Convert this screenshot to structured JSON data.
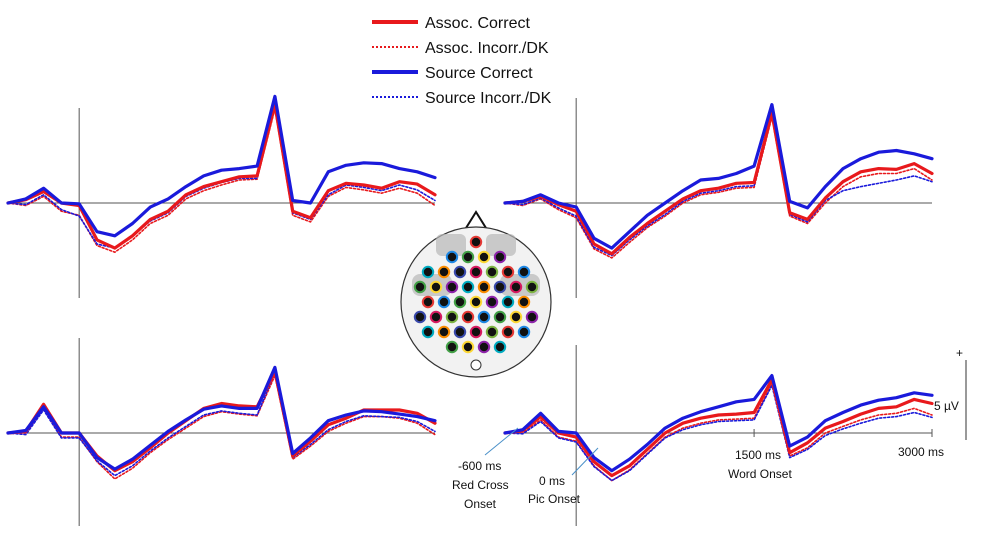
{
  "legend": [
    {
      "label": "Assoc. Correct",
      "color": "#e8191c",
      "dash": "solid"
    },
    {
      "label": "Assoc. Incorr./DK",
      "color": "#e8191c",
      "dash": "dotted"
    },
    {
      "label": "Source Correct",
      "color": "#1a1adb",
      "dash": "solid"
    },
    {
      "label": "Source Incorr./DK",
      "color": "#1a1adb",
      "dash": "dotted"
    }
  ],
  "annotations": {
    "t_neg600_value": "-600 ms",
    "t_neg600_line2": "Red Cross",
    "t_neg600_line3": "Onset",
    "t0_value": "0 ms",
    "t0_line2": "Pic Onset",
    "t1500_value": "1500 ms",
    "t1500_line2": "Word Onset",
    "t3000_value": "3000 ms",
    "scale_plus": "+",
    "scale_label": "5 µV"
  },
  "colors": {
    "red": "#e8191c",
    "blue": "#1a1adb",
    "axis": "#555555"
  },
  "chart_data": [
    {
      "type": "line",
      "panel": "top-left",
      "x_unit": "ms",
      "x": [
        -600,
        -450,
        -300,
        -150,
        0,
        150,
        300,
        450,
        600,
        750,
        900,
        1050,
        1200,
        1350,
        1500,
        1650,
        1800,
        1950,
        2100,
        2250,
        2400,
        2550,
        2700,
        2850,
        3000
      ],
      "series": [
        {
          "name": "Assoc. Correct",
          "values": [
            0,
            0.4,
            1.4,
            0,
            -0.3,
            -4.5,
            -5.5,
            -4,
            -2,
            -1,
            1,
            2,
            2.6,
            3.2,
            3.3,
            12,
            -1,
            -1.8,
            1.5,
            2.4,
            2.2,
            1.8,
            2.6,
            2.3,
            1.0
          ]
        },
        {
          "name": "Assoc. Incorr./DK",
          "values": [
            0,
            -0.3,
            0.8,
            -1.0,
            -1.5,
            -5.2,
            -6.0,
            -4.5,
            -2.5,
            -1.5,
            0.5,
            1.5,
            2.2,
            2.8,
            2.9,
            11.5,
            -1.5,
            -2.3,
            0.8,
            1.9,
            1.6,
            1.2,
            1.8,
            1.2,
            -0.3
          ]
        },
        {
          "name": "Source Correct",
          "values": [
            0,
            0.5,
            1.8,
            0,
            -0.1,
            -3.5,
            -4.0,
            -2.5,
            -0.5,
            0.5,
            2.0,
            3.3,
            4.0,
            4.2,
            4.5,
            13,
            0.3,
            0,
            3.8,
            4.6,
            4.9,
            4.8,
            4.2,
            3.8,
            3.1
          ]
        },
        {
          "name": "Source Incorr./DK",
          "values": [
            0,
            -0.2,
            1.0,
            -0.8,
            -1.6,
            -5.0,
            -5.5,
            -4.0,
            -2.2,
            -1.2,
            0.8,
            1.8,
            2.5,
            3.0,
            3.0,
            11.8,
            -1.2,
            -2.0,
            1.0,
            2.2,
            1.9,
            1.5,
            2.2,
            1.6,
            0.3
          ]
        }
      ]
    },
    {
      "type": "line",
      "panel": "top-right",
      "x_unit": "ms",
      "x": [
        -600,
        -450,
        -300,
        -150,
        0,
        150,
        300,
        450,
        600,
        750,
        900,
        1050,
        1200,
        1350,
        1500,
        1650,
        1800,
        1950,
        2100,
        2250,
        2400,
        2550,
        2700,
        2850,
        3000
      ],
      "series": [
        {
          "name": "Assoc. Correct",
          "values": [
            0,
            0.2,
            0.8,
            -0.2,
            -1.0,
            -5.0,
            -6.2,
            -4.2,
            -2.5,
            -1.0,
            0.5,
            1.5,
            1.8,
            2.4,
            2.5,
            11,
            -1.2,
            -2,
            0.6,
            2.6,
            3.8,
            4.2,
            4.1,
            4.8,
            3.6
          ]
        },
        {
          "name": "Assoc. Incorr./DK",
          "values": [
            0,
            -0.3,
            0.5,
            -0.8,
            -1.8,
            -5.6,
            -6.7,
            -4.8,
            -3.0,
            -1.6,
            0,
            1.0,
            1.3,
            1.8,
            1.9,
            10.5,
            -1.6,
            -2.5,
            0,
            2.0,
            3.2,
            3.6,
            3.6,
            4.2,
            2.8
          ]
        },
        {
          "name": "Source Correct",
          "values": [
            0,
            0.2,
            1.0,
            0,
            -0.5,
            -4.3,
            -5.5,
            -3.5,
            -1.5,
            0,
            1.5,
            2.8,
            3.0,
            3.6,
            4.5,
            12,
            0.2,
            -0.6,
            2.0,
            4.2,
            5.4,
            6.2,
            6.4,
            6.0,
            5.4
          ]
        },
        {
          "name": "Source Incorr./DK",
          "values": [
            0,
            -0.2,
            0.6,
            -0.6,
            -1.6,
            -5.4,
            -6.4,
            -4.5,
            -2.8,
            -1.4,
            0.2,
            1.2,
            1.5,
            2.0,
            2.1,
            10.8,
            -1.4,
            -2.3,
            0.3,
            1.5,
            2.0,
            2.4,
            2.8,
            3.3,
            2.6
          ]
        }
      ]
    },
    {
      "type": "line",
      "panel": "bottom-left",
      "x_unit": "ms",
      "x": [
        -600,
        -450,
        -300,
        -150,
        0,
        150,
        300,
        450,
        600,
        750,
        900,
        1050,
        1200,
        1350,
        1500,
        1650,
        1800,
        1950,
        2100,
        2250,
        2400,
        2550,
        2700,
        2850,
        3000
      ],
      "series": [
        {
          "name": "Assoc. Correct",
          "values": [
            0,
            0.2,
            3.5,
            0,
            0,
            -2.8,
            -4.6,
            -3.5,
            -1.8,
            0,
            1.5,
            3.0,
            3.6,
            3.3,
            3.2,
            7.5,
            -2.8,
            -1.0,
            1.0,
            1.8,
            2.8,
            2.8,
            2.8,
            2.4,
            1.2
          ]
        },
        {
          "name": "Assoc. Incorr./DK",
          "values": [
            0,
            0,
            3.0,
            -0.5,
            -0.5,
            -3.5,
            -5.6,
            -4.3,
            -2.4,
            -0.8,
            0.6,
            2.0,
            2.6,
            2.3,
            2.1,
            7.0,
            -3.2,
            -1.6,
            0.2,
            1.2,
            2.0,
            2.0,
            1.8,
            1.2,
            -0.2
          ]
        },
        {
          "name": "Source Correct",
          "values": [
            0,
            0.3,
            3.2,
            0,
            0,
            -3.0,
            -4.4,
            -3.2,
            -1.5,
            0.2,
            1.6,
            2.9,
            3.3,
            3.0,
            3.0,
            8.0,
            -2.5,
            -0.6,
            1.5,
            2.2,
            2.7,
            2.6,
            2.3,
            2.0,
            1.5
          ]
        },
        {
          "name": "Source Incorr./DK",
          "values": [
            0,
            -0.2,
            2.8,
            -0.6,
            -0.6,
            -3.4,
            -5.2,
            -4.0,
            -2.2,
            -0.6,
            0.8,
            2.2,
            2.7,
            2.4,
            2.2,
            7.4,
            -3.0,
            -1.4,
            0.4,
            1.4,
            2.1,
            2.0,
            1.9,
            1.4,
            0.2
          ]
        }
      ]
    },
    {
      "type": "line",
      "panel": "bottom-right",
      "x_unit": "ms",
      "x": [
        -600,
        -450,
        -300,
        -150,
        0,
        150,
        300,
        450,
        600,
        750,
        900,
        1050,
        1200,
        1350,
        1500,
        1650,
        1800,
        1950,
        2100,
        2250,
        2400,
        2550,
        2700,
        2850,
        3000
      ],
      "series": [
        {
          "name": "Assoc. Correct",
          "values": [
            0,
            0.3,
            2.0,
            0,
            -0.5,
            -3.5,
            -5.2,
            -4.0,
            -2.0,
            0,
            1.2,
            1.8,
            2.2,
            2.3,
            2.5,
            6.5,
            -2.4,
            -1.2,
            0.6,
            1.4,
            2.3,
            3.0,
            3.2,
            4.1,
            3.6
          ]
        },
        {
          "name": "Assoc. Incorr./DK",
          "values": [
            0,
            0,
            1.6,
            -0.5,
            -1.0,
            -4.0,
            -5.8,
            -4.5,
            -2.5,
            -0.5,
            0.6,
            1.2,
            1.6,
            1.7,
            1.8,
            6.0,
            -2.8,
            -1.8,
            0,
            0.8,
            1.6,
            2.2,
            2.4,
            3.0,
            2.2
          ]
        },
        {
          "name": "Source Correct",
          "values": [
            0,
            0.4,
            2.4,
            0.2,
            0,
            -3.0,
            -4.6,
            -3.2,
            -1.4,
            0.6,
            1.8,
            2.6,
            3.2,
            3.8,
            4.1,
            7.0,
            -1.6,
            -0.5,
            1.5,
            2.5,
            3.4,
            4.0,
            4.3,
            4.9,
            4.6
          ]
        },
        {
          "name": "Source Incorr./DK",
          "values": [
            0,
            -0.1,
            1.4,
            -0.6,
            -1.1,
            -4.1,
            -5.8,
            -4.6,
            -2.6,
            -0.6,
            0.4,
            1.0,
            1.4,
            1.5,
            1.6,
            5.8,
            -3.0,
            -2.0,
            -0.3,
            0.5,
            1.2,
            1.8,
            2.0,
            2.5,
            1.9
          ]
        }
      ]
    }
  ]
}
